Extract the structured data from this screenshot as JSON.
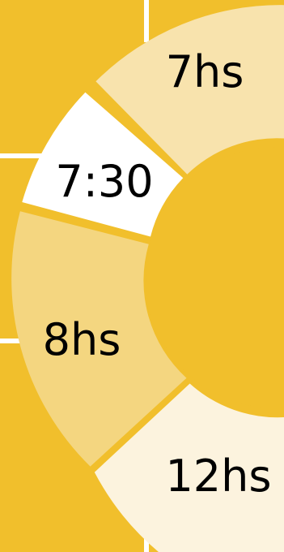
{
  "colors": {
    "background": "#f1bf2c",
    "grid_lines": "#ffffff",
    "center_hub": "#f1bf2c",
    "segment_7hs": "#f8e3ad",
    "segment_730": "#ffffff",
    "segment_8hs": "#f4d680",
    "segment_12hs": "#fcf3de"
  },
  "segments": [
    {
      "label": "7hs"
    },
    {
      "label": "7:30"
    },
    {
      "label": "8hs"
    },
    {
      "label": "12hs"
    }
  ]
}
